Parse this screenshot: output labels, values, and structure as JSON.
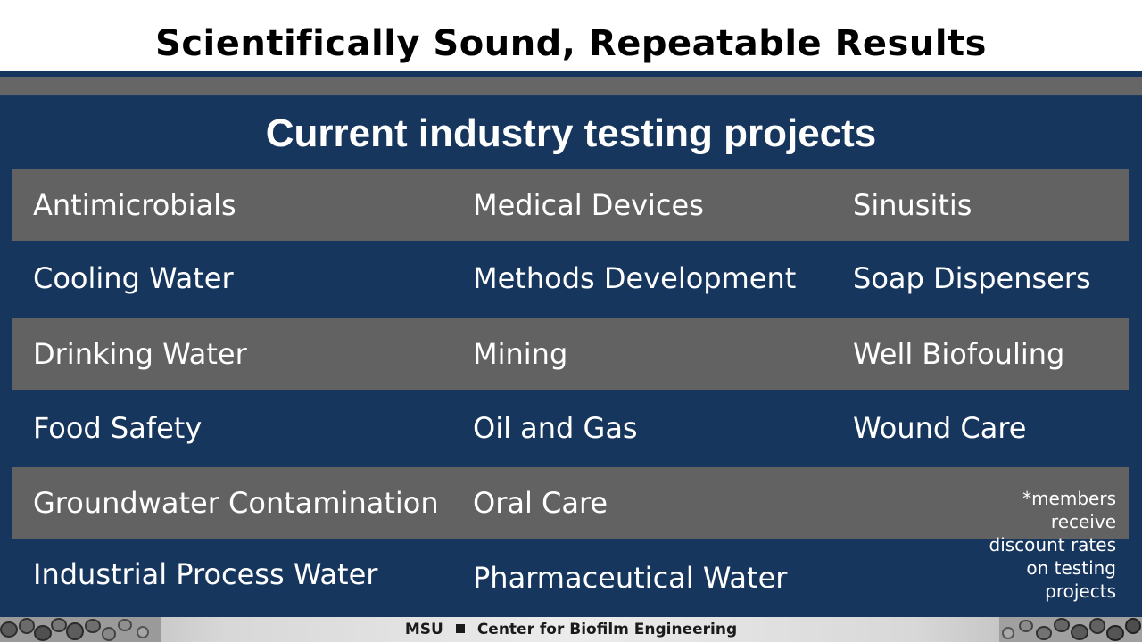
{
  "title": "Scientifically Sound, Repeatable Results",
  "subtitle": "Current industry testing projects",
  "rows": [
    [
      "Antimicrobials",
      "Medical Devices",
      "Sinusitis"
    ],
    [
      "Cooling Water",
      "Methods Development",
      "Soap Dispensers"
    ],
    [
      "Drinking Water",
      "Mining",
      "Well Biofouling"
    ],
    [
      "Food Safety",
      "Oil and Gas",
      "Wound Care"
    ],
    [
      "Groundwater Contamination",
      "Oral Care",
      ""
    ],
    [
      "Industrial Process Water",
      "Pharmaceutical Water",
      ""
    ]
  ],
  "note": {
    "lines": [
      "*members",
      "receive",
      "discount rates",
      "on testing",
      "projects"
    ]
  },
  "footer": {
    "left": "MSU",
    "right": "Center for Biofilm Engineering"
  },
  "colors": {
    "navy": "#17365d",
    "gray_row": "#626262",
    "text_light": "#ffffff"
  }
}
